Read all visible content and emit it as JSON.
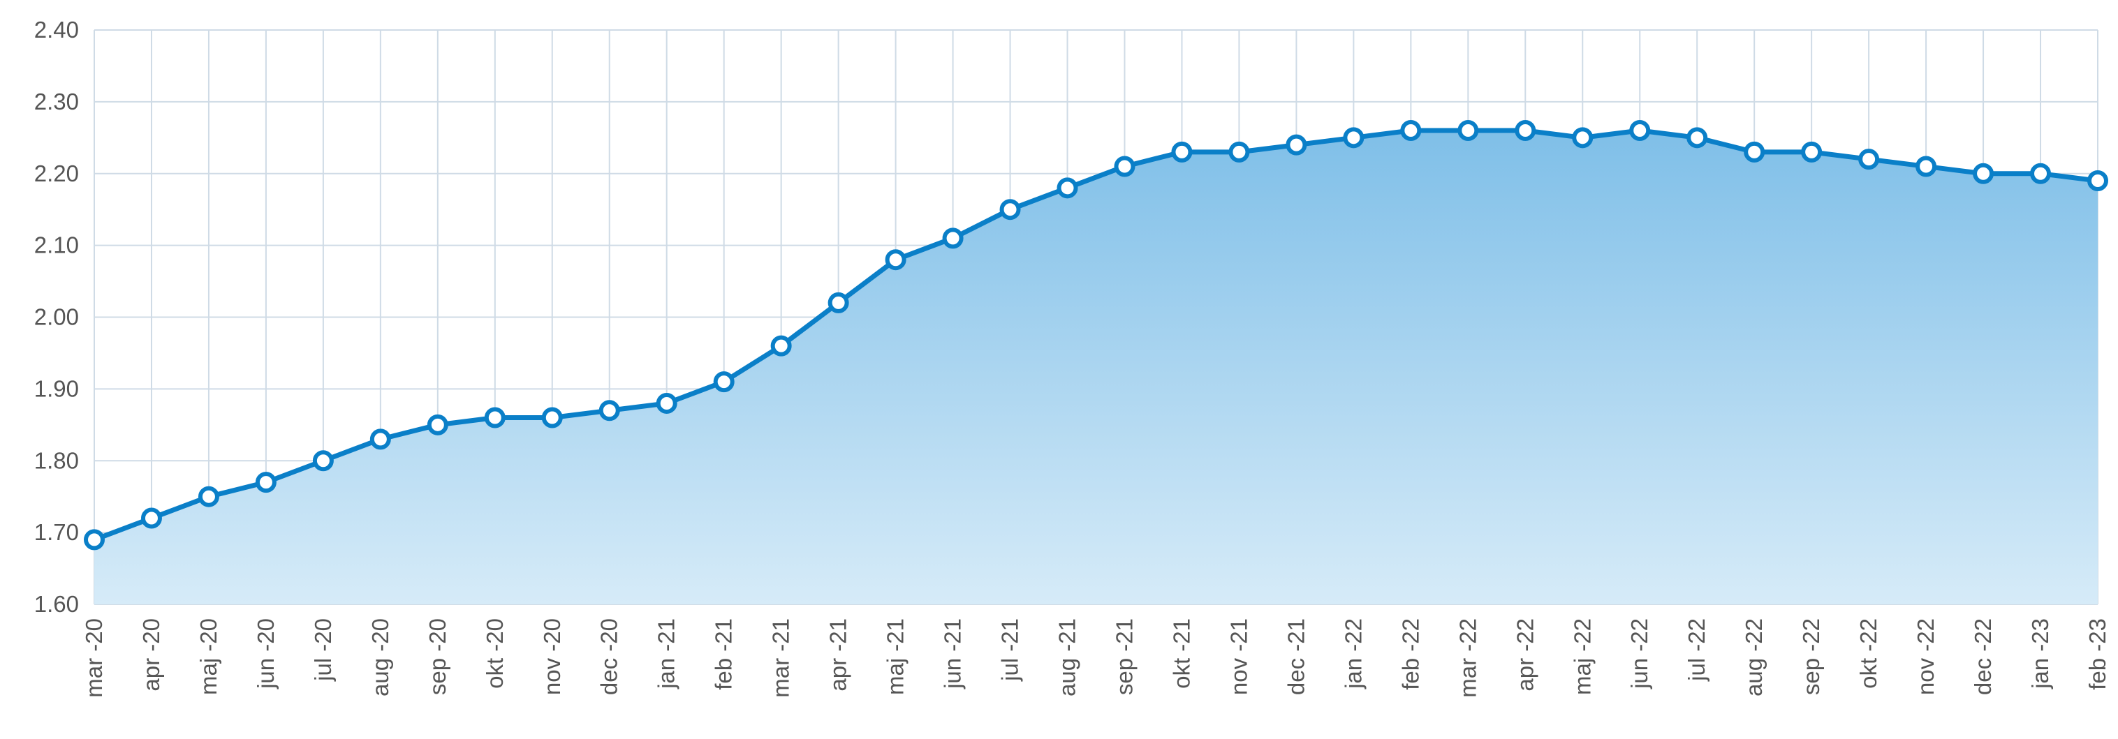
{
  "chart_data": {
    "type": "line",
    "categories": [
      "mar -20",
      "apr -20",
      "maj -20",
      "jun -20",
      "jul -20",
      "aug -20",
      "sep -20",
      "okt -20",
      "nov -20",
      "dec -20",
      "jan -21",
      "feb -21",
      "mar -21",
      "apr -21",
      "maj -21",
      "jun -21",
      "jul -21",
      "aug -21",
      "sep -21",
      "okt -21",
      "nov -21",
      "dec -21",
      "jan -22",
      "feb -22",
      "mar -22",
      "apr -22",
      "maj -22",
      "jun -22",
      "jul -22",
      "aug -22",
      "sep -22",
      "okt -22",
      "nov -22",
      "dec -22",
      "jan -23",
      "feb -23"
    ],
    "values": [
      1.69,
      1.72,
      1.75,
      1.77,
      1.8,
      1.83,
      1.85,
      1.86,
      1.86,
      1.87,
      1.88,
      1.91,
      1.96,
      2.02,
      2.08,
      2.11,
      2.15,
      2.18,
      2.21,
      2.23,
      2.23,
      2.24,
      2.25,
      2.26,
      2.26,
      2.26,
      2.25,
      2.26,
      2.25,
      2.23,
      2.23,
      2.22,
      2.21,
      2.2,
      2.2,
      2.19
    ],
    "color": "#0a7fc8",
    "ylim": [
      1.6,
      2.4
    ],
    "yticks": [
      {
        "value": 1.6,
        "label": "1.60"
      },
      {
        "value": 1.7,
        "label": "1.70"
      },
      {
        "value": 1.8,
        "label": "1.80"
      },
      {
        "value": 1.9,
        "label": "1.90"
      },
      {
        "value": 2.0,
        "label": "2.00"
      },
      {
        "value": 2.1,
        "label": "2.10"
      },
      {
        "value": 2.2,
        "label": "2.20"
      },
      {
        "value": 2.3,
        "label": "2.30"
      },
      {
        "value": 2.4,
        "label": "2.40"
      }
    ],
    "grid": true,
    "area": true
  }
}
